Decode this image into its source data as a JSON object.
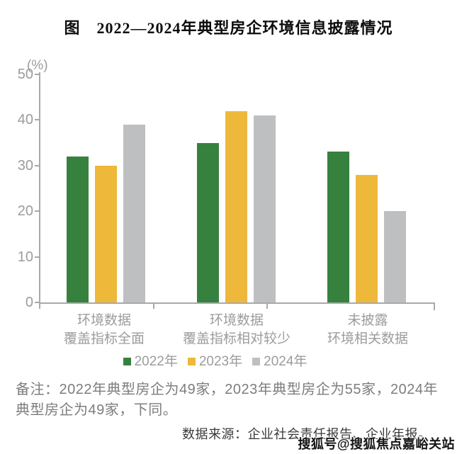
{
  "chart_data": {
    "type": "bar",
    "title": "图　2022—2024年典型房企环境信息披露情况",
    "unit_label": "(%)",
    "categories": [
      [
        "环境数据",
        "覆盖指标全面"
      ],
      [
        "环境数据",
        "覆盖指标相对较少"
      ],
      [
        "未披露",
        "环境相关数据"
      ]
    ],
    "series": [
      {
        "name": "2022年",
        "color": "#37813F",
        "values": [
          32,
          35,
          33
        ]
      },
      {
        "name": "2023年",
        "color": "#EEB93A",
        "values": [
          30,
          42,
          28
        ]
      },
      {
        "name": "2024年",
        "color": "#BDBFC1",
        "values": [
          39,
          41,
          20
        ]
      }
    ],
    "ylim": [
      0,
      50
    ],
    "yticks": [
      0,
      10,
      20,
      30,
      40,
      50
    ],
    "grid": false,
    "legend_position": "bottom",
    "axis_color": "#A9A9A9",
    "tick_label_color": "#9C9C9C"
  },
  "notes": {
    "remark": "备注：2022年典型房企为49家，2023年典型房企为55家，2024年典型房企为49家，下同。",
    "source": "数据来源：企业社会责任报告、企业年报。",
    "watermark": "搜狐号@搜狐焦点嘉峪关站"
  }
}
